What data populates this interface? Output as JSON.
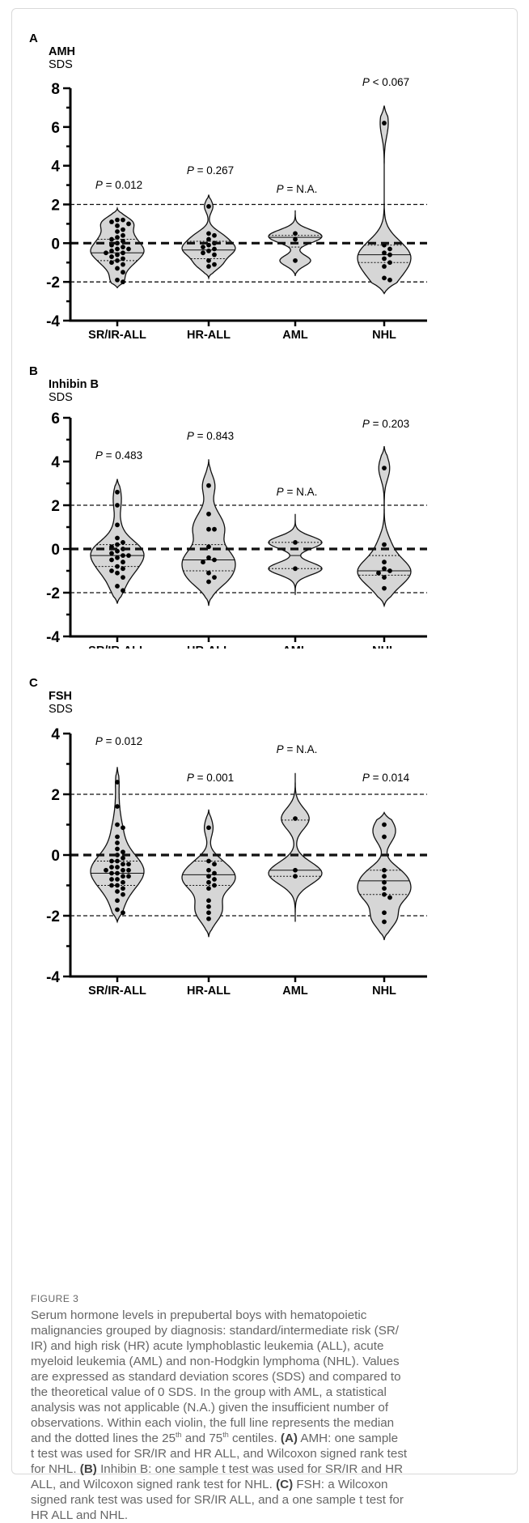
{
  "chart_data": [
    {
      "type": "violin",
      "panel": "A",
      "title": "AMH",
      "ylabel": "SDS",
      "ylim": [
        -4,
        8
      ],
      "yticks": [
        8,
        6,
        4,
        2,
        0,
        -2,
        -4
      ],
      "categories": [
        "SR/IR-ALL",
        "HR-ALL",
        "AML",
        "NHL"
      ],
      "reference_lines": {
        "dashed_thin": [
          2,
          -2
        ],
        "dashed_thick": [
          0
        ]
      },
      "p_values": [
        "= 0.012",
        "= 0.267",
        "= N.A.",
        "< 0.067"
      ],
      "groups": [
        {
          "name": "SR/IR-ALL",
          "median": -0.5,
          "q1": -0.9,
          "q3": 0.2,
          "range": [
            -2.3,
            1.8
          ],
          "points": [
            1.2,
            1.2,
            1.1,
            1.0,
            0.9,
            0.7,
            0.6,
            0.4,
            0.3,
            0.2,
            0.1,
            0.0,
            -0.1,
            -0.2,
            -0.3,
            -0.3,
            -0.4,
            -0.5,
            -0.5,
            -0.6,
            -0.7,
            -0.8,
            -0.9,
            -1.0,
            -1.1,
            -1.3,
            -1.5,
            -1.9,
            -2.0
          ]
        },
        {
          "name": "HR-ALL",
          "median": -0.35,
          "q1": -0.8,
          "q3": 0.1,
          "range": [
            -1.8,
            2.5
          ],
          "points": [
            1.9,
            0.5,
            0.4,
            0.2,
            0.0,
            -0.1,
            -0.2,
            -0.3,
            -0.4,
            -0.5,
            -0.6,
            -0.9,
            -1.1,
            -1.2
          ]
        },
        {
          "name": "AML",
          "median": 0.3,
          "q1": -0.2,
          "q3": 0.4,
          "range": [
            -1.7,
            1.7
          ],
          "points": [
            0.5,
            0.2,
            -0.9
          ]
        },
        {
          "name": "NHL",
          "median": -0.6,
          "q1": -1.0,
          "q3": -0.1,
          "range": [
            -2.6,
            7.1
          ],
          "points": [
            6.2,
            -0.1,
            -0.3,
            -0.5,
            -0.6,
            -0.8,
            -1.0,
            -1.2,
            -1.8,
            -1.9
          ]
        }
      ]
    },
    {
      "type": "violin",
      "panel": "B",
      "title": "Inhibin B",
      "ylabel": "SDS",
      "ylim": [
        -4,
        6
      ],
      "yticks": [
        6,
        4,
        2,
        0,
        -2,
        -4
      ],
      "categories": [
        "SR/IR-ALL",
        "HR-ALL",
        "AML",
        "NHL"
      ],
      "reference_lines": {
        "dashed_thin": [
          2,
          -2
        ],
        "dashed_thick": [
          0
        ]
      },
      "p_values": [
        "= 0.483",
        "= 0.843",
        "= N.A.",
        "= 0.203"
      ],
      "groups": [
        {
          "name": "SR/IR-ALL",
          "median": -0.3,
          "q1": -0.8,
          "q3": 0.2,
          "range": [
            -2.5,
            3.2
          ],
          "points": [
            2.6,
            2.0,
            1.1,
            0.5,
            0.3,
            0.2,
            0.1,
            0.0,
            -0.1,
            -0.2,
            -0.3,
            -0.3,
            -0.4,
            -0.5,
            -0.6,
            -0.8,
            -0.9,
            -1.0,
            -1.1,
            -1.3,
            -1.7,
            -1.9
          ]
        },
        {
          "name": "HR-ALL",
          "median": -0.5,
          "q1": -1.0,
          "q3": 0.2,
          "range": [
            -2.6,
            4.1
          ],
          "points": [
            2.9,
            1.6,
            0.9,
            0.9,
            0.1,
            -0.4,
            -0.5,
            -0.6,
            -1.1,
            -1.3,
            -1.5
          ]
        },
        {
          "name": "AML",
          "median": -0.3,
          "q1": -0.9,
          "q3": 0.3,
          "range": [
            -2.1,
            1.6
          ],
          "points": [
            0.3,
            -0.9
          ]
        },
        {
          "name": "NHL",
          "median": -1.0,
          "q1": -1.2,
          "q3": -0.3,
          "range": [
            -2.6,
            4.7
          ],
          "points": [
            3.7,
            0.2,
            -0.6,
            -0.9,
            -1.0,
            -1.1,
            -1.3,
            -1.8
          ]
        }
      ]
    },
    {
      "type": "violin",
      "panel": "C",
      "title": "FSH",
      "ylabel": "SDS",
      "ylim": [
        -4,
        4
      ],
      "yticks": [
        4,
        2,
        0,
        -2,
        -4
      ],
      "categories": [
        "SR/IR-ALL",
        "HR-ALL",
        "AML",
        "NHL"
      ],
      "reference_lines": {
        "dashed_thin": [
          2,
          -2
        ],
        "dashed_thick": [
          0
        ]
      },
      "p_values": [
        "= 0.012",
        "= 0.001",
        "= N.A.",
        "= 0.014"
      ],
      "groups": [
        {
          "name": "SR/IR-ALL",
          "median": -0.6,
          "q1": -1.0,
          "q3": -0.2,
          "range": [
            -2.2,
            2.9
          ],
          "points": [
            2.4,
            1.6,
            1.0,
            0.9,
            0.6,
            0.4,
            0.2,
            0.1,
            0.0,
            -0.1,
            -0.2,
            -0.2,
            -0.3,
            -0.3,
            -0.4,
            -0.4,
            -0.5,
            -0.5,
            -0.5,
            -0.6,
            -0.6,
            -0.7,
            -0.7,
            -0.8,
            -0.8,
            -0.9,
            -1.0,
            -1.0,
            -1.1,
            -1.2,
            -1.3,
            -1.5,
            -1.8,
            -1.9
          ]
        },
        {
          "name": "HR-ALL",
          "median": -0.65,
          "q1": -1.0,
          "q3": -0.2,
          "range": [
            -2.7,
            1.5
          ],
          "points": [
            0.9,
            -0.2,
            -0.3,
            -0.5,
            -0.6,
            -0.7,
            -0.8,
            -0.9,
            -1.0,
            -1.1,
            -1.5,
            -1.7,
            -1.9,
            -2.1
          ]
        },
        {
          "name": "AML",
          "median": -0.5,
          "q1": -0.7,
          "q3": 1.15,
          "range": [
            -2.2,
            2.7
          ],
          "points": [
            1.2,
            -0.5,
            -0.7
          ]
        },
        {
          "name": "NHL",
          "median": -0.85,
          "q1": -1.3,
          "q3": -0.5,
          "range": [
            -2.8,
            1.4
          ],
          "points": [
            1.0,
            0.6,
            -0.5,
            -0.7,
            -0.9,
            -1.1,
            -1.3,
            -1.4,
            -1.9,
            -2.2
          ]
        }
      ]
    }
  ],
  "figure": {
    "label": "FIGURE 3",
    "caption_lines": [
      "Serum hormone levels in prepubertal boys with hematopoietic",
      "malignancies grouped by diagnosis: standard/intermediate risk (SR/",
      "IR) and high risk (HR) acute lymphoblastic leukemia (ALL), acute",
      "myeloid leukemia (AML) and non-Hodgkin lymphoma (NHL). Values",
      "are expressed as standard deviation scores (SDS) and compared to",
      "the theoretical value of 0 SDS. In the group with AML, a statistical",
      "analysis was not applicable (N.A.) given the insufficient number of",
      "observations. Within each violin, the full line represents the median",
      "and the dotted lines the 25th and 75th centiles. (A) AMH: one sample",
      "t test was used for SR/IR and HR ALL, and Wilcoxon signed rank test",
      "for NHL. (B) Inhibin B: one sample t test was used for SR/IR and HR",
      "ALL, and Wilcoxon signed rank test for NHL. (C) FSH: a Wilcoxon",
      "signed rank test was used for SR/IR ALL, and a one sample t test for",
      "HR ALL and NHL."
    ]
  }
}
